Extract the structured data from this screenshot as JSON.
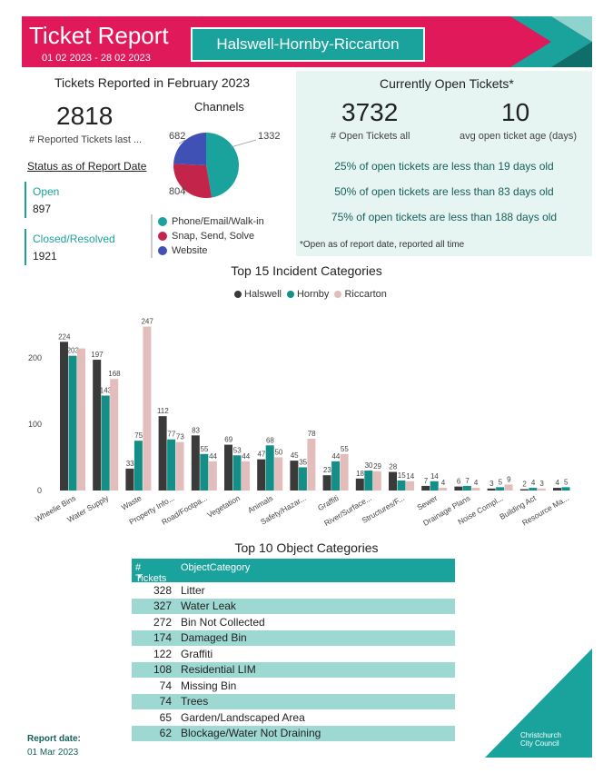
{
  "header": {
    "title": "Ticket Report",
    "date_range": "01 02 2023 - 28 02 2023",
    "ward": "Halswell-Hornby-Riccarton"
  },
  "reported": {
    "title": "Tickets Reported in February 2023",
    "value": "2818",
    "label": "# Reported Tickets last ..."
  },
  "status": {
    "title": "Status as of Report Date",
    "open_label": "Open",
    "open_value": "897",
    "closed_label": "Closed/Resolved",
    "closed_value": "1921"
  },
  "channels": {
    "title": "Channels",
    "slices": [
      {
        "name": "Phone/Email/Walk-in",
        "value": 1332,
        "label": "1332",
        "color": "#1aa39d"
      },
      {
        "name": "Snap, Send, Solve",
        "value": 804,
        "label": "804",
        "color": "#c2244a"
      },
      {
        "name": "Website",
        "value": 682,
        "label": "682",
        "color": "#3f51b5"
      }
    ]
  },
  "open_panel": {
    "title": "Currently Open Tickets*",
    "open_all_value": "3732",
    "open_all_label": "# Open Tickets all",
    "avg_age_value": "10",
    "avg_age_label": "avg open ticket age (days)",
    "pct_25": "25% of open tickets are less than 19 days old",
    "pct_50": "50% of open tickets are less than 83 days old",
    "pct_75": "75% of open tickets are less than 188 days old",
    "note": "*Open as of report date, reported all time"
  },
  "chart_data": {
    "type": "bar",
    "title": "Top 15 Incident Categories",
    "categories": [
      "Wheelie Bins",
      "Water Supply",
      "Waste",
      "Property Info...",
      "Road/Footpa...",
      "Vegetation",
      "Animals",
      "Safety/Hazar...",
      "Graffiti",
      "River/Surface...",
      "Structures/F...",
      "Sewer",
      "Drainage Plans",
      "Noise Compl...",
      "Building Act",
      "Resource Ma..."
    ],
    "series": [
      {
        "name": "Halswell",
        "color": "#3a3a3a",
        "values": [
          224,
          197,
          33,
          112,
          83,
          69,
          47,
          45,
          23,
          18,
          28,
          7,
          6,
          3,
          2,
          4
        ]
      },
      {
        "name": "Hornby",
        "color": "#138f88",
        "values": [
          203,
          143,
          75,
          77,
          55,
          53,
          68,
          35,
          44,
          30,
          15,
          14,
          7,
          5,
          4,
          5
        ]
      },
      {
        "name": "Riccarton",
        "color": "#e3bcbc",
        "values": [
          214,
          168,
          247,
          73,
          44,
          44,
          50,
          78,
          55,
          29,
          14,
          4,
          4,
          9,
          3,
          null
        ]
      }
    ],
    "visible_labels": [
      [
        "224",
        "197",
        "33",
        "112",
        "83",
        "69",
        "47",
        "45",
        "23",
        "18",
        "28",
        "7",
        "6",
        "3",
        "2",
        "4"
      ],
      [
        "203",
        "143",
        "75",
        "77",
        "55",
        "53",
        "68",
        "35",
        "44",
        "30",
        "15",
        "14",
        "7",
        "5",
        "4",
        "5"
      ],
      [
        "",
        "168",
        "247",
        "73",
        "44",
        "44",
        "50",
        "78",
        "55",
        "29",
        "14",
        "4",
        "4",
        "9",
        "3",
        ""
      ]
    ],
    "y_ticks": [
      "0",
      "100",
      "200"
    ],
    "ylim": [
      0,
      260
    ],
    "legend_position": "top"
  },
  "objects": {
    "title": "Top 10 Object Categories",
    "col_tickets": "# Tickets",
    "col_category": "ObjectCategory",
    "rows": [
      {
        "tickets": "328",
        "category": "Litter"
      },
      {
        "tickets": "327",
        "category": "Water Leak"
      },
      {
        "tickets": "272",
        "category": "Bin Not Collected"
      },
      {
        "tickets": "174",
        "category": "Damaged Bin"
      },
      {
        "tickets": "122",
        "category": "Graffiti"
      },
      {
        "tickets": "108",
        "category": "Residential LIM"
      },
      {
        "tickets": "74",
        "category": "Missing Bin"
      },
      {
        "tickets": "74",
        "category": "Trees"
      },
      {
        "tickets": "65",
        "category": "Garden/Landscaped Area"
      },
      {
        "tickets": "62",
        "category": "Blockage/Water Not Draining"
      }
    ]
  },
  "footer": {
    "report_date_label": "Report date:",
    "report_date_value": "01 Mar 2023",
    "logo_line1": "Christchurch",
    "logo_line2": "City Council"
  }
}
